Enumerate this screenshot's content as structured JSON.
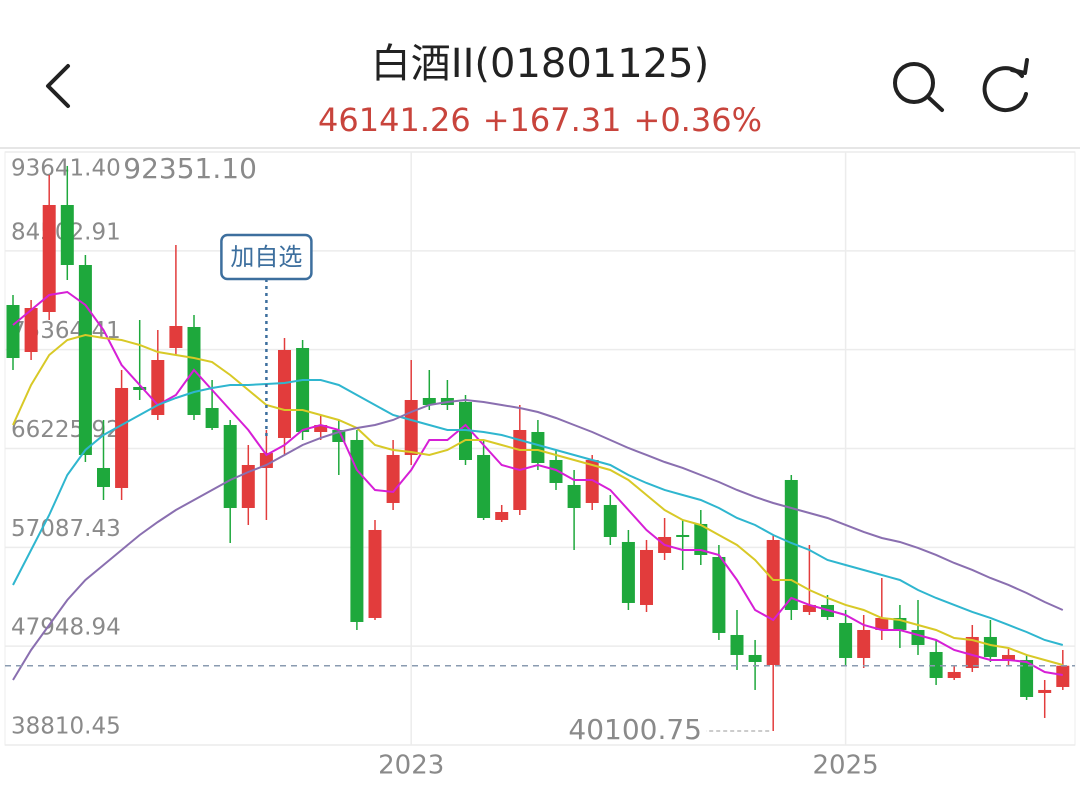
{
  "chart_data": {
    "type": "candlestick",
    "title": "白酒II(01801125)",
    "price": 46141.26,
    "change": "+167.31",
    "change_pct": "+0.36%",
    "button": "加自选",
    "max_label": {
      "value": 92351.1,
      "label": "92351.10"
    },
    "min_label": 40100.75,
    "up_color": "#e23c3c",
    "down_color": "#1ea83c",
    "ylim": [
      38810.45,
      93641.4
    ],
    "yticks": [
      38810.45,
      47948.94,
      57087.43,
      66225.92,
      75364.41,
      84502.91,
      {
        "value": 93641.4,
        "label": "93641.40"
      }
    ],
    "grid": true,
    "categories": [
      null,
      null,
      null,
      null,
      null,
      null,
      null,
      null,
      null,
      null,
      null,
      null,
      null,
      null,
      null,
      null,
      null,
      null,
      null,
      null,
      null,
      null,
      "2023",
      null,
      null,
      null,
      null,
      null,
      null,
      null,
      null,
      null,
      null,
      null,
      null,
      null,
      null,
      null,
      null,
      null,
      null,
      null,
      null,
      null,
      null,
      null,
      "2025",
      null,
      null,
      null,
      null,
      null,
      null,
      null,
      null,
      null,
      null,
      null,
      null
    ],
    "open": [
      79495,
      75149,
      78847,
      88741,
      83193,
      64424,
      62575,
      71913,
      69324,
      75519,
      77461,
      69971,
      68399,
      60725,
      64424,
      67198,
      75519,
      67752,
      67937,
      67013,
      50555,
      61188,
      65626,
      70896,
      70896,
      70526,
      65626,
      59616,
      60540,
      67752,
      65163,
      62852,
      61188,
      61003,
      57582,
      51757,
      56565,
      58229,
      59246,
      56195,
      48983,
      47134,
      46209,
      63314,
      51109,
      51757,
      50092,
      46856,
      49445,
      50555,
      49445,
      47411,
      45007,
      45932,
      48798,
      46671,
      46671,
      43620,
      44175
    ],
    "high": [
      80419,
      79957,
      91514,
      92351.1,
      84118,
      68862,
      73485,
      78108,
      77183,
      85042,
      78570,
      72560,
      68862,
      66550,
      67937,
      76444,
      76259,
      69324,
      68862,
      67937,
      59616,
      67013,
      74409,
      73485,
      72560,
      71173,
      67013,
      61003,
      70249,
      68862,
      66088,
      64239,
      65626,
      61927,
      58691,
      57767,
      59801,
      59616,
      60540,
      57304,
      51294,
      48521,
      58229,
      63776,
      57304,
      52681,
      51294,
      50832,
      54253,
      51757,
      52219,
      48521,
      46209,
      49907,
      50370,
      47781,
      47134,
      44822,
      47596
    ],
    "low": [
      73485,
      74409,
      78108,
      81806,
      64978,
      61465,
      61465,
      70711,
      68862,
      74872,
      68862,
      67937,
      57489,
      59153,
      59616,
      65626,
      67013,
      67013,
      63776,
      49445,
      50370,
      60540,
      64701,
      69786,
      69786,
      64701,
      59616,
      59431,
      60078,
      64239,
      62390,
      56842,
      60540,
      57304,
      51294,
      51109,
      55917,
      54993,
      55455,
      48521,
      45747,
      43898,
      40100.75,
      50370,
      50832,
      50370,
      46209,
      45932,
      48521,
      47781,
      47134,
      44360,
      44822,
      45562,
      46486,
      46209,
      42973,
      41309,
      43898
    ],
    "close": [
      74594,
      79217,
      88741,
      83193,
      65626,
      62667,
      71821,
      71636,
      74409,
      77553,
      69324,
      68122,
      60725,
      64701,
      65811,
      75334,
      67752,
      68399,
      66828,
      50185,
      58691,
      65626,
      70711,
      70249,
      70249,
      65163,
      59801,
      60355,
      67937,
      64886,
      63037,
      60725,
      65163,
      58044,
      51942,
      56842,
      58044,
      58044,
      56380,
      49168,
      47134,
      46486,
      57767,
      51294,
      51757,
      50647,
      46856,
      49445,
      50555,
      49445,
      48058,
      45007,
      45562,
      48798,
      46949,
      47134,
      43250,
      43898,
      46141.26
    ],
    "series": [
      {
        "color": "#d61fd6",
        "values": [
          77645,
          79032,
          80419,
          80697,
          79495,
          77183,
          73947,
          72098,
          70249,
          71173,
          73485,
          71636,
          69786,
          67937,
          65626,
          66550,
          67937,
          68399,
          67937,
          64239,
          62390,
          62205,
          64239,
          67013,
          67013,
          68399,
          66550,
          64701,
          64239,
          64701,
          64239,
          63314,
          63314,
          62390,
          60540,
          58691,
          57304,
          56842,
          56842,
          56380,
          54068,
          51294,
          50370,
          52404,
          51757,
          51294,
          50832,
          49907,
          49445,
          49445,
          48983,
          48521,
          47596,
          47134,
          46671,
          46671,
          46486,
          45562,
          45284
        ]
      },
      {
        "color": "#d8c927",
        "values": [
          68399,
          72098,
          74872,
          76259,
          76721,
          76444,
          76259,
          75796,
          75149,
          74872,
          74594,
          74224,
          73022,
          71636,
          70249,
          69786,
          69786,
          69324,
          68862,
          68122,
          66550,
          66088,
          65903,
          65626,
          66088,
          67013,
          67013,
          66550,
          66088,
          66088,
          65626,
          65163,
          64701,
          64239,
          63314,
          61927,
          60540,
          59616,
          59153,
          58229,
          57304,
          55917,
          54068,
          54068,
          53144,
          52404,
          51757,
          51294,
          50555,
          50370,
          49907,
          49445,
          48706,
          48521,
          48058,
          47781,
          47134,
          46671,
          46209
        ]
      },
      {
        "color": "#2fb6cf",
        "values": [
          53606,
          56842,
          60078,
          63776,
          66088,
          67475,
          68399,
          69324,
          70249,
          70896,
          71451,
          71821,
          72098,
          72098,
          72190,
          72283,
          72560,
          72560,
          72098,
          71173,
          70249,
          69324,
          68862,
          68399,
          67937,
          67937,
          67752,
          67475,
          67013,
          66550,
          66088,
          65626,
          65163,
          64701,
          63776,
          63037,
          62390,
          61927,
          61465,
          60725,
          59801,
          59153,
          58229,
          57489,
          56842,
          55917,
          55455,
          54993,
          54530,
          54068,
          53144,
          52404,
          51757,
          51109,
          50555,
          49907,
          49260,
          48521,
          48058
        ]
      },
      {
        "color": "#8a6fb0",
        "values": [
          44822,
          47596,
          49907,
          52219,
          54068,
          55455,
          56842,
          58229,
          59431,
          60540,
          61465,
          62390,
          63314,
          64054,
          64701,
          65626,
          66550,
          67198,
          67752,
          68122,
          68399,
          68862,
          69601,
          70249,
          70526,
          70711,
          70526,
          70249,
          69971,
          69601,
          69047,
          68399,
          67752,
          67013,
          66273,
          65626,
          64978,
          64424,
          63776,
          63129,
          62390,
          61742,
          61188,
          60725,
          60263,
          59801,
          59153,
          58506,
          57952,
          57582,
          57027,
          56380,
          55640,
          54993,
          54253,
          53606,
          52866,
          52034,
          51294
        ]
      }
    ]
  }
}
